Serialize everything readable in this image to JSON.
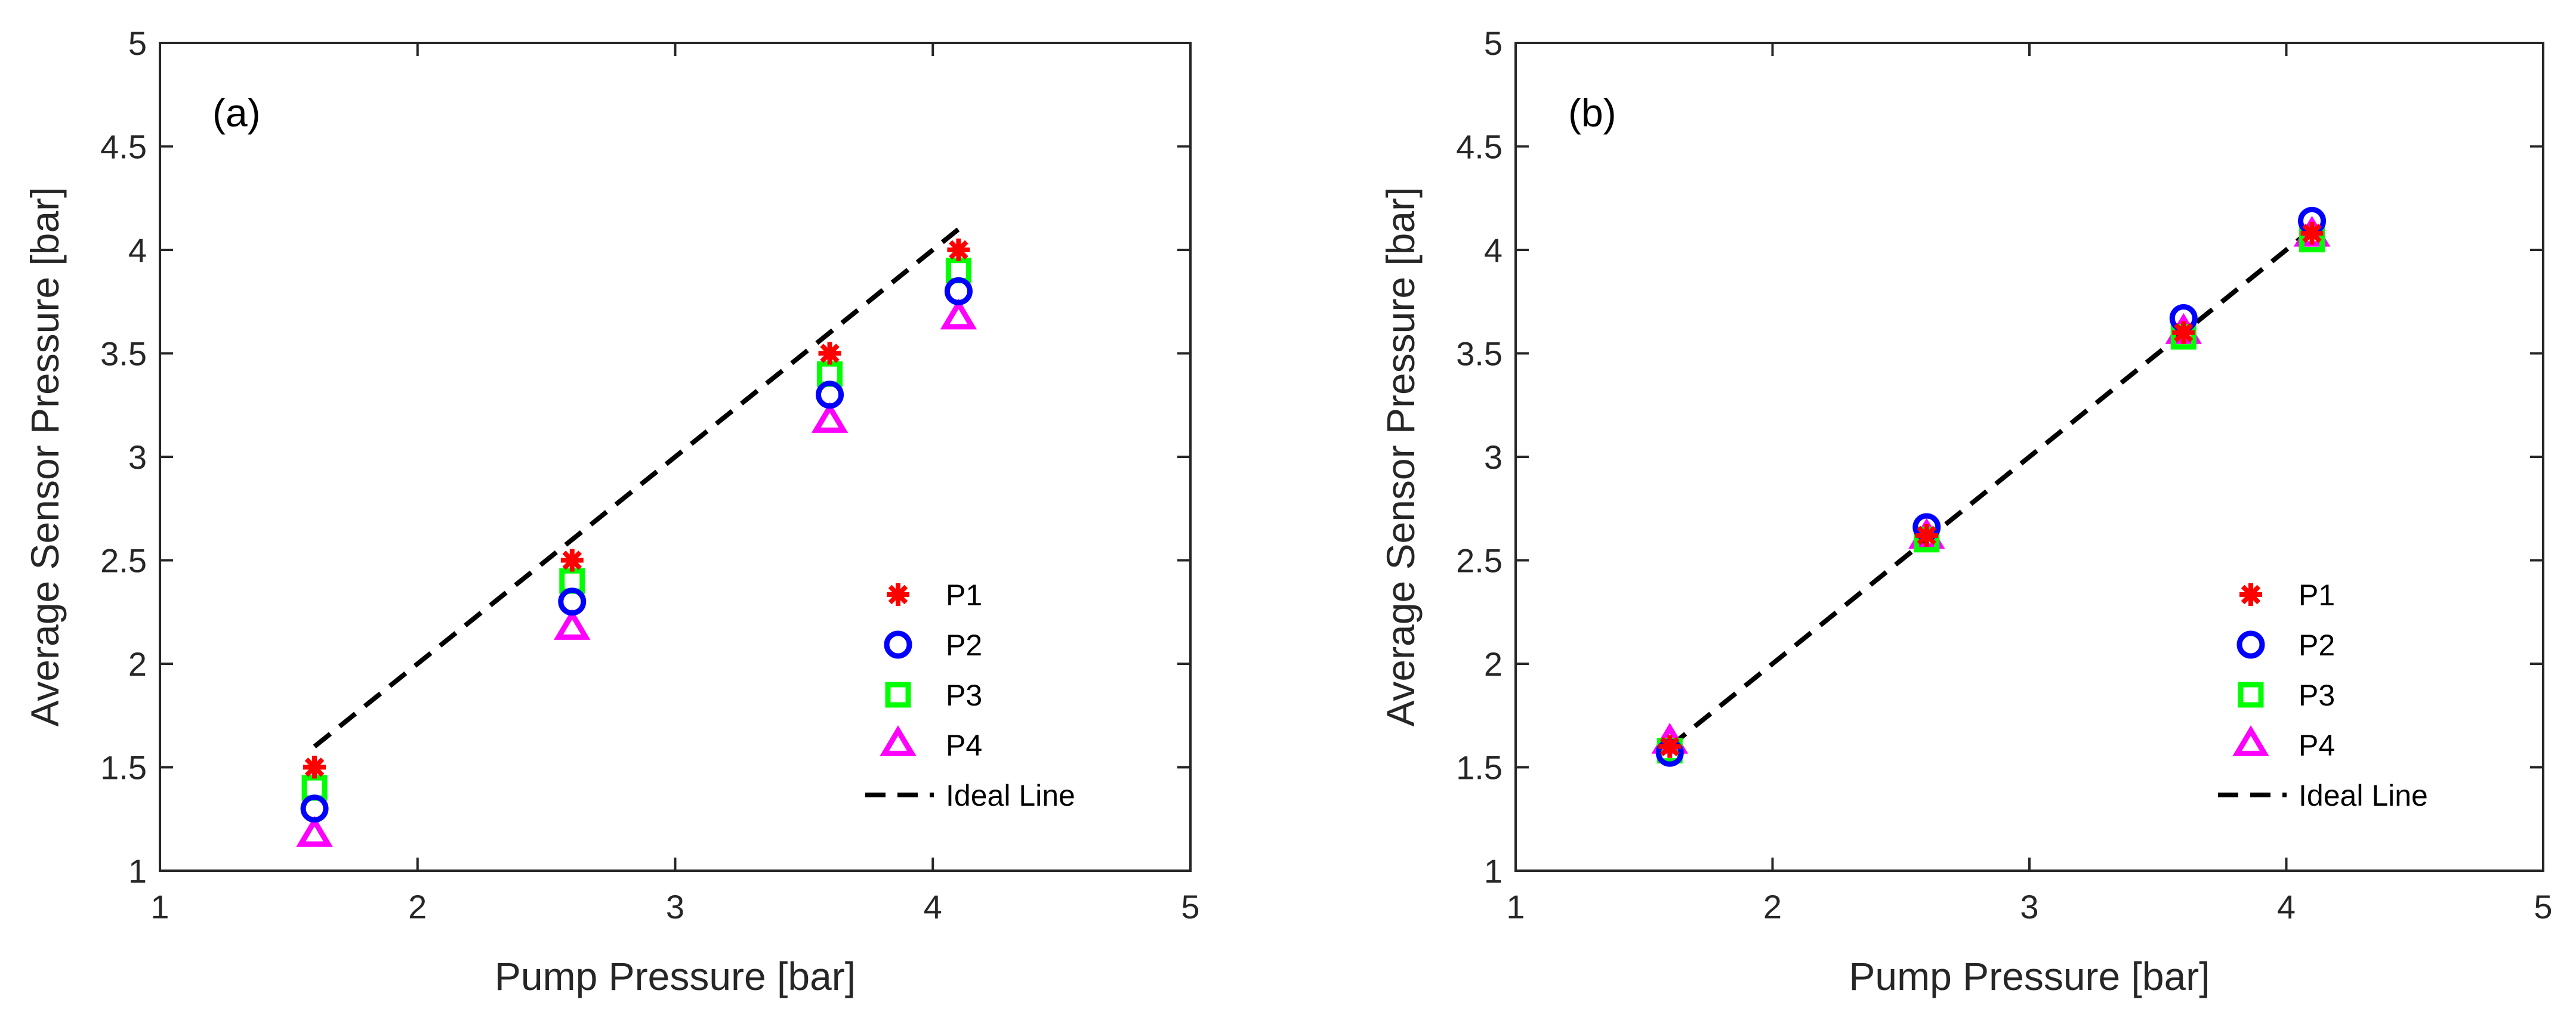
{
  "colors": {
    "axis": "#262626",
    "P1": "#ff0000",
    "P2": "#0000ff",
    "P3": "#00ff00",
    "P4": "#ff00ff",
    "ideal": "#000000"
  },
  "chart_data": [
    {
      "type": "scatter",
      "panel_label": "(a)",
      "xlabel": "Pump Pressure [bar]",
      "ylabel": "Average Sensor Pressure [bar]",
      "xlim": [
        1,
        5
      ],
      "ylim": [
        1,
        5
      ],
      "xticks": [
        1,
        2,
        3,
        4,
        5
      ],
      "yticks": [
        1,
        1.5,
        2,
        2.5,
        3,
        3.5,
        4,
        4.5,
        5
      ],
      "x": [
        1.6,
        2.6,
        3.6,
        4.1
      ],
      "series": [
        {
          "name": "P1",
          "marker": "asterisk",
          "values": [
            1.5,
            2.5,
            3.5,
            4.0
          ]
        },
        {
          "name": "P2",
          "marker": "circle",
          "values": [
            1.3,
            2.3,
            3.3,
            3.8
          ]
        },
        {
          "name": "P3",
          "marker": "square",
          "values": [
            1.4,
            2.4,
            3.4,
            3.9
          ]
        },
        {
          "name": "P4",
          "marker": "triangle",
          "values": [
            1.17,
            2.17,
            3.17,
            3.67
          ]
        }
      ],
      "ideal_line": {
        "name": "Ideal Line",
        "x": [
          1.6,
          4.1
        ],
        "y": [
          1.6,
          4.1
        ]
      },
      "legend": [
        "P1",
        "P2",
        "P3",
        "P4",
        "Ideal Line"
      ],
      "legend_position": "bottom-right",
      "grid": false
    },
    {
      "type": "scatter",
      "panel_label": "(b)",
      "xlabel": "Pump Pressure [bar]",
      "ylabel": "Average Sensor Pressure [bar]",
      "xlim": [
        1,
        5
      ],
      "ylim": [
        1,
        5
      ],
      "xticks": [
        1,
        2,
        3,
        4,
        5
      ],
      "yticks": [
        1,
        1.5,
        2,
        2.5,
        3,
        3.5,
        4,
        4.5,
        5
      ],
      "x": [
        1.6,
        2.6,
        3.6,
        4.1
      ],
      "series": [
        {
          "name": "P1",
          "marker": "asterisk",
          "values": [
            1.6,
            2.62,
            3.6,
            4.08
          ]
        },
        {
          "name": "P2",
          "marker": "circle",
          "values": [
            1.57,
            2.66,
            3.67,
            4.14
          ]
        },
        {
          "name": "P3",
          "marker": "square",
          "values": [
            1.58,
            2.6,
            3.58,
            4.05
          ]
        },
        {
          "name": "P4",
          "marker": "triangle",
          "values": [
            1.62,
            2.61,
            3.6,
            4.07
          ]
        }
      ],
      "ideal_line": {
        "name": "Ideal Line",
        "x": [
          1.6,
          4.1
        ],
        "y": [
          1.6,
          4.1
        ]
      },
      "legend": [
        "P1",
        "P2",
        "P3",
        "P4",
        "Ideal Line"
      ],
      "legend_position": "bottom-right",
      "grid": false
    }
  ]
}
